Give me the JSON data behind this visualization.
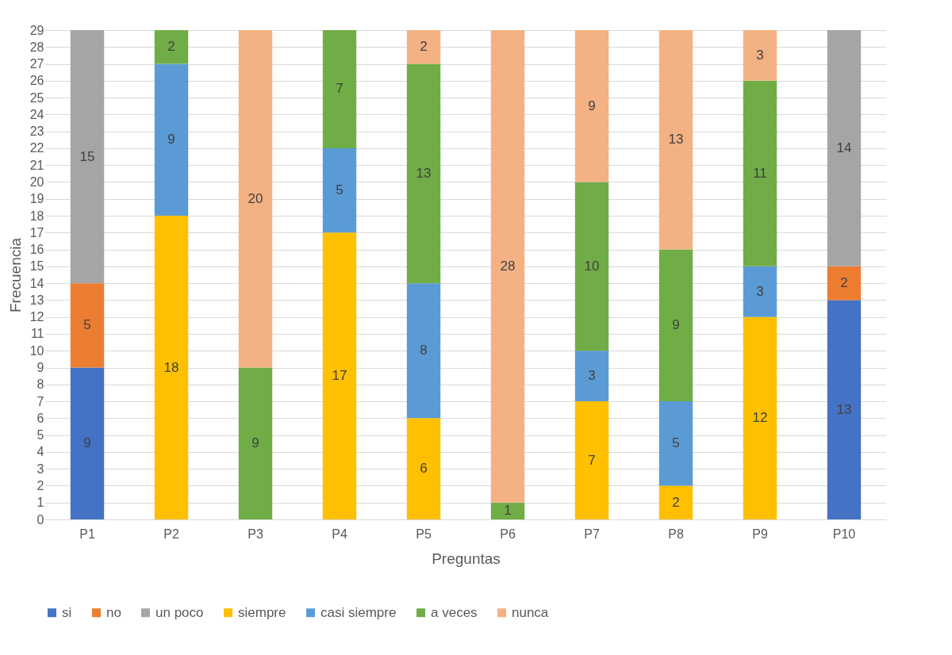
{
  "chart_data": {
    "type": "bar",
    "stacked": true,
    "xlabel": "Preguntas",
    "ylabel": "Frecuencia",
    "categories": [
      "P1",
      "P2",
      "P3",
      "P4",
      "P5",
      "P6",
      "P7",
      "P8",
      "P9",
      "P10"
    ],
    "series": [
      {
        "name": "si",
        "color": "#4472c4",
        "values": [
          9,
          null,
          null,
          null,
          null,
          null,
          null,
          null,
          null,
          13
        ]
      },
      {
        "name": "no",
        "color": "#ed7d31",
        "values": [
          5,
          null,
          null,
          null,
          null,
          null,
          null,
          null,
          null,
          2
        ]
      },
      {
        "name": "un poco",
        "color": "#a5a5a5",
        "values": [
          15,
          null,
          null,
          null,
          null,
          null,
          null,
          null,
          null,
          14
        ]
      },
      {
        "name": "siempre",
        "color": "#ffc000",
        "values": [
          null,
          18,
          null,
          17,
          6,
          null,
          7,
          2,
          12,
          null
        ]
      },
      {
        "name": "casi siempre",
        "color": "#5b9bd5",
        "values": [
          null,
          9,
          null,
          5,
          8,
          null,
          3,
          5,
          3,
          null
        ]
      },
      {
        "name": "a veces",
        "color": "#70ad47",
        "values": [
          null,
          2,
          9,
          7,
          13,
          1,
          10,
          9,
          11,
          null
        ]
      },
      {
        "name": "nunca",
        "color": "#f4b183",
        "values": [
          null,
          null,
          20,
          null,
          2,
          28,
          9,
          13,
          3,
          null
        ]
      }
    ],
    "ylim": [
      0,
      29
    ],
    "yticks": [
      0,
      1,
      2,
      3,
      4,
      5,
      6,
      7,
      8,
      9,
      10,
      11,
      12,
      13,
      14,
      15,
      16,
      17,
      18,
      19,
      20,
      21,
      22,
      23,
      24,
      25,
      26,
      27,
      28,
      29
    ],
    "grid": "y",
    "legend": "bottom",
    "data_labels": true
  }
}
